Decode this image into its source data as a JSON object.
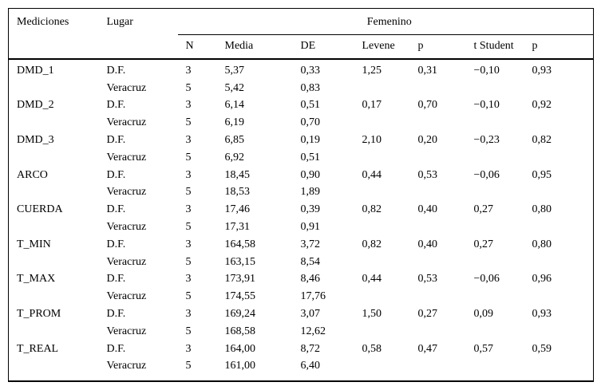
{
  "table": {
    "header": {
      "col_mediciones": "Mediciones",
      "col_lugar": "Lugar",
      "group_femenino": "Femenino",
      "sub_columns": [
        "N",
        "Media",
        "DE",
        "Levene",
        "p",
        "t Student",
        "p"
      ]
    },
    "rows": [
      [
        "DMD_1",
        "D.F.",
        "3",
        "5,37",
        "0,33",
        "1,25",
        "0,31",
        "−0,10",
        "0,93"
      ],
      [
        "",
        "Veracruz",
        "5",
        "5,42",
        "0,83",
        "",
        "",
        "",
        ""
      ],
      [
        "DMD_2",
        "D.F.",
        "3",
        "6,14",
        "0,51",
        "0,17",
        "0,70",
        "−0,10",
        "0,92"
      ],
      [
        "",
        "Veracruz",
        "5",
        "6,19",
        "0,70",
        "",
        "",
        "",
        ""
      ],
      [
        "DMD_3",
        "D.F.",
        "3",
        "6,85",
        "0,19",
        "2,10",
        "0,20",
        "−0,23",
        "0,82"
      ],
      [
        "",
        "Veracruz",
        "5",
        "6,92",
        "0,51",
        "",
        "",
        "",
        ""
      ],
      [
        "ARCO",
        "D.F.",
        "3",
        "18,45",
        "0,90",
        "0,44",
        "0,53",
        "−0,06",
        "0,95"
      ],
      [
        "",
        "Veracruz",
        "5",
        "18,53",
        "1,89",
        "",
        "",
        "",
        ""
      ],
      [
        "CUERDA",
        "D.F.",
        "3",
        "17,46",
        "0,39",
        "0,82",
        "0,40",
        "0,27",
        "0,80"
      ],
      [
        "",
        "Veracruz",
        "5",
        "17,31",
        "0,91",
        "",
        "",
        "",
        ""
      ],
      [
        "T_MIN",
        "D.F.",
        "3",
        "164,58",
        "3,72",
        "0,82",
        "0,40",
        "0,27",
        "0,80"
      ],
      [
        "",
        "Veracruz",
        "5",
        "163,15",
        "8,54",
        "",
        "",
        "",
        ""
      ],
      [
        "T_MAX",
        "D.F.",
        "3",
        "173,91",
        "8,46",
        "0,44",
        "0,53",
        "−0,06",
        "0,96"
      ],
      [
        "",
        "Veracruz",
        "5",
        "174,55",
        "17,76",
        "",
        "",
        "",
        ""
      ],
      [
        "T_PROM",
        "D.F.",
        "3",
        "169,24",
        "3,07",
        "1,50",
        "0,27",
        "0,09",
        "0,93"
      ],
      [
        "",
        "Veracruz",
        "5",
        "168,58",
        "12,62",
        "",
        "",
        "",
        ""
      ],
      [
        "T_REAL",
        "D.F.",
        "3",
        "164,00",
        "8,72",
        "0,58",
        "0,47",
        "0,57",
        "0,59"
      ],
      [
        "",
        "Veracruz",
        "5",
        "161,00",
        "6,40",
        "",
        "",
        "",
        ""
      ]
    ],
    "cell_names": [
      "measurement-cell",
      "lugar-cell",
      "n-cell",
      "media-cell",
      "de-cell",
      "levene-cell",
      "p-levene-cell",
      "t-student-cell",
      "p-t-cell"
    ]
  },
  "colors": {
    "text": "#000000",
    "background": "#ffffff",
    "rule": "#000000"
  }
}
